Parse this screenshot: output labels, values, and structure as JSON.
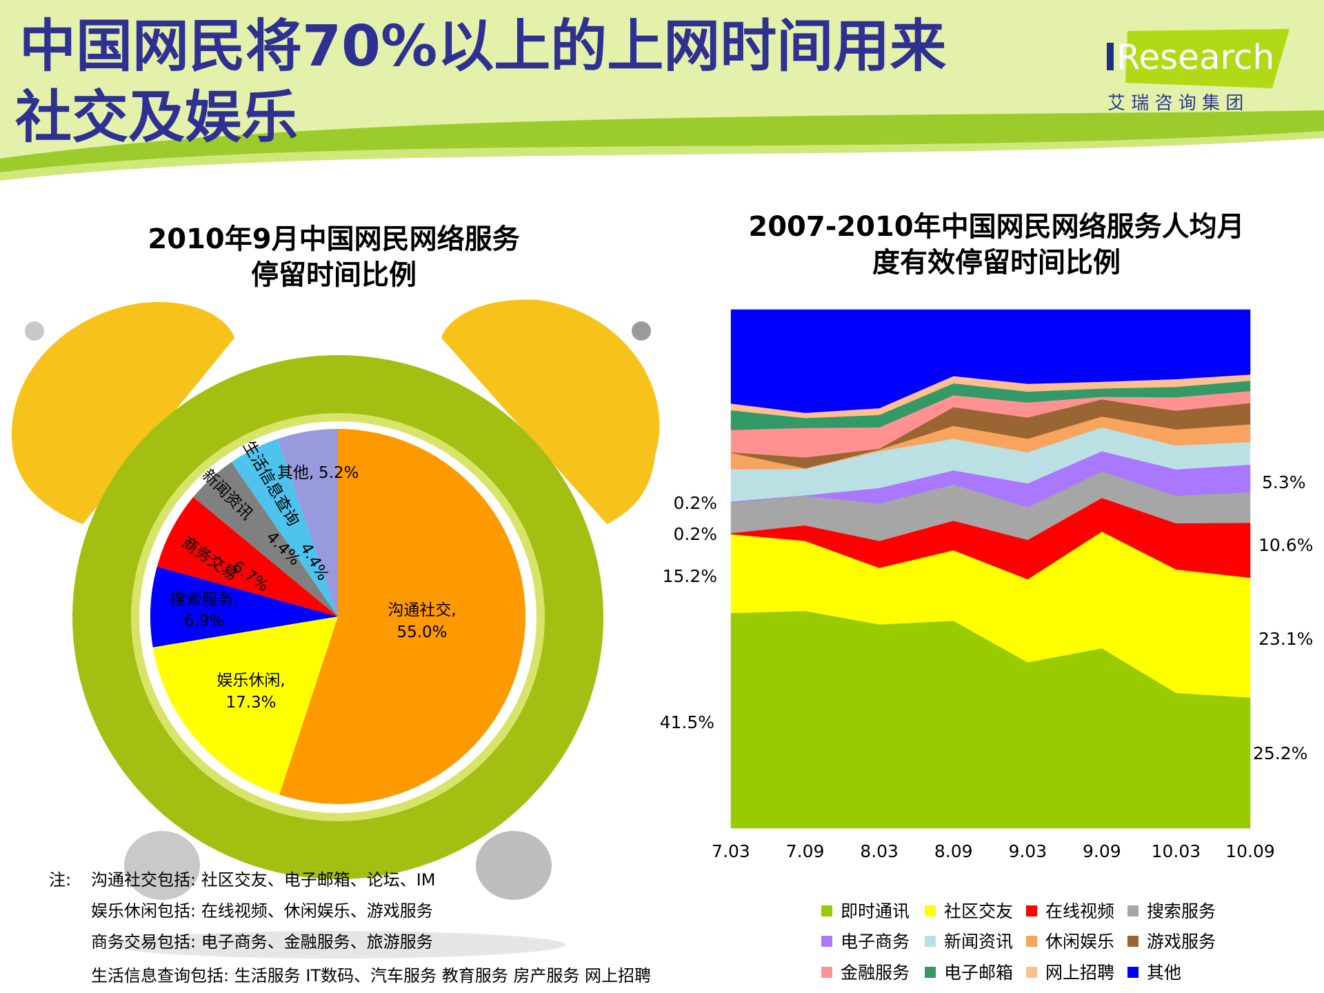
{
  "header": {
    "title_line1": "中国网民将70%以上的上网时间用来",
    "title_line2": "社交及娱乐",
    "logo_text": "iResearch",
    "logo_subtitle": "艾 瑞 咨 询 集 团"
  },
  "chart_data": [
    {
      "type": "pie",
      "title_line1": "2010年9月中国网民网络服务",
      "title_line2": "停留时间比例",
      "labels": [
        "沟通社交,",
        "娱乐休闲,",
        "搜索服务,",
        "商务交易",
        "新闻资讯",
        "生活信息查询",
        "其他,"
      ],
      "values": [
        55.0,
        17.3,
        6.9,
        6.7,
        4.4,
        4.4,
        5.2
      ],
      "data_labels": [
        "55.0%",
        "17.3%",
        "6.9%",
        "6.7%",
        "4.4%",
        "4.4%",
        "5.2%"
      ],
      "colors": [
        "#ff9900",
        "#ffff00",
        "#0000ff",
        "#ff0000",
        "#808080",
        "#4dc3ee",
        "#9999dd"
      ]
    },
    {
      "type": "area",
      "stacked": true,
      "normalized": true,
      "title_line1": "2007-2010年中国网民网络服务人均月",
      "title_line2": "度有效停留时间比例",
      "categories": [
        "7.03",
        "7.09",
        "8.03",
        "8.09",
        "9.03",
        "9.09",
        "10.03",
        "10.09"
      ],
      "ylim": [
        0,
        100
      ],
      "series": [
        {
          "name": "即时通讯",
          "color": "#99cc00",
          "values": [
            41.5,
            41.9,
            39.3,
            40.0,
            32.0,
            34.7,
            26.1,
            25.2
          ]
        },
        {
          "name": "社区交友",
          "color": "#ffff00",
          "values": [
            15.2,
            13.5,
            10.9,
            13.6,
            16.0,
            22.5,
            23.8,
            23.1
          ]
        },
        {
          "name": "在线视频",
          "color": "#ff0000",
          "values": [
            0.2,
            3.0,
            5.2,
            5.7,
            7.6,
            6.5,
            8.9,
            10.6
          ]
        },
        {
          "name": "搜索服务",
          "color": "#a6a6a6",
          "values": [
            5.9,
            5.7,
            7.2,
            7.0,
            6.3,
            5.1,
            5.3,
            5.9
          ]
        },
        {
          "name": "电子商务",
          "color": "#aa77ff",
          "values": [
            0.2,
            0.1,
            3.0,
            2.7,
            4.6,
            3.9,
            5.1,
            5.3
          ]
        },
        {
          "name": "新闻资讯",
          "color": "#bbe0e3",
          "values": [
            6.2,
            5.1,
            7.1,
            6.1,
            6.0,
            4.6,
            4.6,
            4.4
          ]
        },
        {
          "name": "休闲娱乐",
          "color": "#f8a35e",
          "values": [
            3.2,
            0.1,
            0.3,
            2.5,
            2.6,
            2.1,
            3.1,
            3.4
          ]
        },
        {
          "name": "游戏服务",
          "color": "#996633",
          "values": [
            0.1,
            2.1,
            0.2,
            3.6,
            4.1,
            3.3,
            3.6,
            4.1
          ]
        },
        {
          "name": "金融服务",
          "color": "#ff9191",
          "values": [
            4.3,
            5.7,
            4.1,
            2.3,
            2.9,
            0.5,
            2.6,
            2.3
          ]
        },
        {
          "name": "电子邮箱",
          "color": "#339966",
          "values": [
            3.8,
            1.9,
            2.4,
            2.3,
            2.1,
            1.6,
            2.0,
            2.0
          ]
        },
        {
          "name": "网上招聘",
          "color": "#ffbf8f",
          "values": [
            1.3,
            1.0,
            1.3,
            1.4,
            1.5,
            1.3,
            1.5,
            1.2
          ]
        },
        {
          "name": "其他",
          "color": "#0000ff",
          "values": [
            18.1,
            20.0,
            19.0,
            13.3,
            14.3,
            13.9,
            13.4,
            12.5
          ]
        }
      ],
      "left_labels": [
        "0.2%",
        "0.2%",
        "15.2%",
        "41.5%"
      ],
      "right_labels": [
        "5.3%",
        "10.6%",
        "23.1%",
        "25.2%"
      ],
      "legend_position": "bottom"
    }
  ],
  "notes": {
    "prefix": "注:",
    "lines": [
      "沟通社交包括: 社区交友、电子邮箱、论坛、IM",
      "娱乐休闲包括: 在线视频、休闲娱乐、游戏服务",
      "商务交易包括: 电子商务、金融服务、旅游服务",
      "生活信息查询包括: 生活服务 IT数码、汽车服务 教育服务 房产服务 网上招聘"
    ]
  }
}
